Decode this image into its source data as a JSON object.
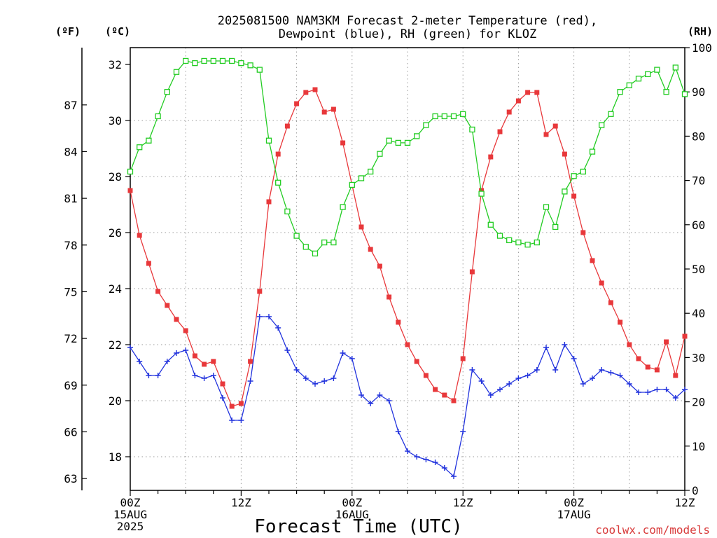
{
  "chart_data": {
    "type": "line",
    "title_line1": "2025081500 NAM3KM Forecast 2-meter Temperature (red),",
    "title_line2": "Dewpoint (blue), RH (green) for KLOZ",
    "xlabel": "Forecast Time (UTC)",
    "credit": "coolwx.com/models",
    "unit_labels": {
      "fahrenheit": "(ºF)",
      "celsius": "(ºC)",
      "rh": "(RH)"
    },
    "x_tick_labels": [
      {
        "hour": 0,
        "lines": [
          "00Z",
          "15AUG",
          "2025"
        ]
      },
      {
        "hour": 12,
        "lines": [
          "12Z"
        ]
      },
      {
        "hour": 24,
        "lines": [
          "00Z",
          "16AUG"
        ]
      },
      {
        "hour": 36,
        "lines": [
          "12Z"
        ]
      },
      {
        "hour": 48,
        "lines": [
          "00Z",
          "17AUG"
        ]
      },
      {
        "hour": 60,
        "lines": [
          "12Z"
        ]
      }
    ],
    "xlim": [
      0,
      60
    ],
    "ylim_celsius": [
      16.8,
      32.6
    ],
    "y_ticks_celsius": [
      18,
      20,
      22,
      24,
      26,
      28,
      30,
      32
    ],
    "y_ticks_fahrenheit": [
      63,
      66,
      69,
      72,
      75,
      78,
      81,
      84,
      87
    ],
    "ylim_rh": [
      0,
      100
    ],
    "y_ticks_rh": [
      0,
      10,
      20,
      30,
      40,
      50,
      60,
      70,
      80,
      90,
      100
    ],
    "grid": true,
    "hours": [
      0,
      1,
      2,
      3,
      4,
      5,
      6,
      7,
      8,
      9,
      10,
      11,
      12,
      13,
      14,
      15,
      16,
      17,
      18,
      19,
      20,
      21,
      22,
      23,
      24,
      25,
      26,
      27,
      28,
      29,
      30,
      31,
      32,
      33,
      34,
      35,
      36,
      37,
      38,
      39,
      40,
      41,
      42,
      43,
      44,
      45,
      46,
      47,
      48,
      49,
      50,
      51,
      52,
      53,
      54,
      55,
      56,
      57,
      58,
      59,
      60
    ],
    "series": [
      {
        "name": "Temperature",
        "color": "#e8383b",
        "axis": "celsius",
        "marker": "filled-square",
        "values": [
          27.5,
          25.9,
          24.9,
          23.9,
          23.4,
          22.9,
          22.5,
          21.6,
          21.3,
          21.4,
          20.6,
          19.8,
          19.9,
          21.4,
          23.9,
          27.1,
          28.8,
          29.8,
          30.6,
          31.0,
          31.1,
          30.3,
          30.4,
          29.2,
          27.7,
          26.2,
          25.4,
          24.8,
          23.7,
          22.8,
          22.0,
          21.4,
          20.9,
          20.4,
          20.2,
          20.0,
          21.5,
          24.6,
          27.5,
          28.7,
          29.6,
          30.3,
          30.7,
          31.0,
          31.0,
          29.5,
          29.8,
          28.8,
          27.3,
          26.0,
          25.0,
          24.2,
          23.5,
          22.8,
          22.0,
          21.5,
          21.2,
          21.1,
          22.1,
          20.9,
          22.3
        ]
      },
      {
        "name": "Dewpoint",
        "color": "#2233dd",
        "axis": "celsius",
        "marker": "plus",
        "values": [
          21.9,
          21.4,
          20.9,
          20.9,
          21.4,
          21.7,
          21.8,
          20.9,
          20.8,
          20.9,
          20.1,
          19.3,
          19.3,
          20.7,
          23.0,
          23.0,
          22.6,
          21.8,
          21.1,
          20.8,
          20.6,
          20.7,
          20.8,
          21.7,
          21.5,
          20.2,
          19.9,
          20.2,
          20.0,
          18.9,
          18.2,
          18.0,
          17.9,
          17.8,
          17.6,
          17.3,
          18.9,
          21.1,
          20.7,
          20.2,
          20.4,
          20.6,
          20.8,
          20.9,
          21.1,
          21.9,
          21.1,
          22.0,
          21.5,
          20.6,
          20.8,
          21.1,
          21.0,
          20.9,
          20.6,
          20.3,
          20.3,
          20.4,
          20.4,
          20.1,
          20.4
        ]
      },
      {
        "name": "RH",
        "color": "#22cc22",
        "axis": "rh",
        "marker": "open-square",
        "values": [
          72,
          77.5,
          79,
          84.5,
          90,
          94.5,
          97,
          96.5,
          97,
          97,
          97,
          97,
          96.5,
          96,
          95,
          79,
          69.5,
          63,
          57.5,
          55,
          53.5,
          56,
          56,
          64,
          69,
          70.5,
          72,
          76,
          79,
          78.5,
          78.5,
          80,
          82.5,
          84.5,
          84.5,
          84.5,
          85,
          81.5,
          67,
          60,
          57.5,
          56.5,
          56,
          55.5,
          56,
          64,
          59.5,
          67.5,
          71,
          72,
          76.5,
          82.5,
          85,
          90,
          91.5,
          93,
          94,
          95,
          90,
          95.5,
          89.5
        ]
      }
    ]
  }
}
